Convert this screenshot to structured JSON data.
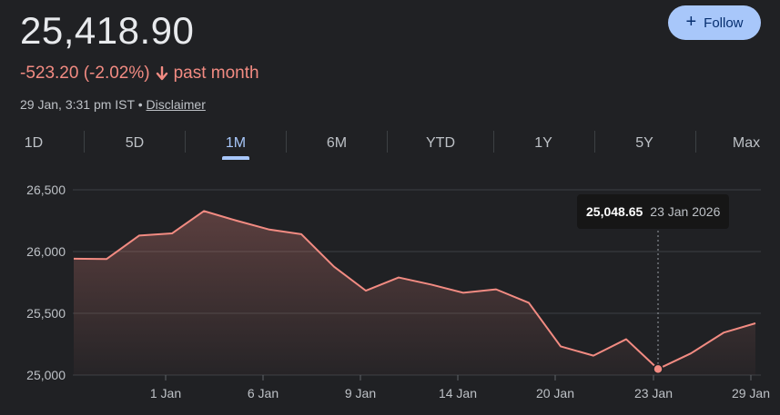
{
  "quote": {
    "price": "25,418.90",
    "change": "-523.20 (-2.02%)",
    "period": "past month",
    "timestamp": "29 Jan, 3:31 pm IST",
    "separator": "•",
    "disclaimer": "Disclaimer",
    "follow_label": "Follow",
    "accent_color": "#a8c7fa",
    "down_color": "#f28b82"
  },
  "tabs": [
    {
      "label": "1D",
      "active": false
    },
    {
      "label": "5D",
      "active": false
    },
    {
      "label": "1M",
      "active": true
    },
    {
      "label": "6M",
      "active": false
    },
    {
      "label": "YTD",
      "active": false
    },
    {
      "label": "1Y",
      "active": false
    },
    {
      "label": "5Y",
      "active": false
    },
    {
      "label": "Max",
      "active": false
    }
  ],
  "tooltip": {
    "value": "25,048.65",
    "date": "23 Jan 2026"
  },
  "chart_data": {
    "type": "area",
    "title": "",
    "xlabel": "",
    "ylabel": "",
    "x_ticks": [
      "1 Jan",
      "6 Jan",
      "9 Jan",
      "14 Jan",
      "20 Jan",
      "23 Jan",
      "29 Jan"
    ],
    "y_ticks": [
      "26,500",
      "26,000",
      "25,500",
      "25,000"
    ],
    "ylim": [
      25000,
      26500
    ],
    "grid": true,
    "legend": "none",
    "line_color": "#f28b82",
    "series": [
      {
        "x": [
          "29 Dec",
          "30 Dec",
          "31 Dec",
          "1 Jan",
          "2 Jan",
          "5 Jan",
          "6 Jan",
          "7 Jan",
          "8 Jan",
          "9 Jan",
          "12 Jan",
          "13 Jan",
          "14 Jan",
          "16 Jan",
          "19 Jan",
          "20 Jan",
          "21 Jan",
          "22 Jan",
          "23 Jan",
          "27 Jan",
          "28 Jan",
          "29 Jan"
        ],
        "values": [
          25942,
          25939,
          26130,
          26147,
          26328,
          26250,
          26178,
          26141,
          25877,
          25683,
          25790,
          25732,
          25666,
          25694,
          25585,
          25232,
          25157,
          25290,
          25049,
          25175,
          25343,
          25419
        ]
      }
    ],
    "highlight": {
      "x": "23 Jan",
      "value": 25049
    }
  }
}
